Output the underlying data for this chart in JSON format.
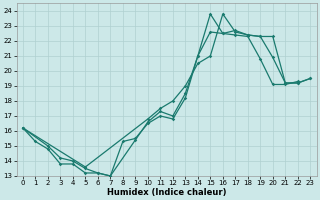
{
  "xlabel": "Humidex (Indice chaleur)",
  "bg_color": "#cce8e8",
  "grid_color": "#b0d0d0",
  "line_color": "#1a7a6e",
  "xlim": [
    -0.5,
    23.5
  ],
  "ylim": [
    13,
    24.5
  ],
  "xticks": [
    0,
    1,
    2,
    3,
    4,
    5,
    6,
    7,
    8,
    9,
    10,
    11,
    12,
    13,
    14,
    15,
    16,
    17,
    18,
    19,
    20,
    21,
    22,
    23
  ],
  "yticks": [
    13,
    14,
    15,
    16,
    17,
    18,
    19,
    20,
    21,
    22,
    23,
    24
  ],
  "line1_x": [
    0,
    1,
    2,
    3,
    4,
    5,
    6,
    7,
    8,
    9,
    10,
    11,
    12,
    13,
    14,
    15,
    16,
    17,
    18,
    19,
    20,
    21,
    22
  ],
  "line1_y": [
    16.2,
    15.3,
    14.8,
    13.8,
    13.8,
    13.2,
    13.2,
    13.0,
    15.3,
    15.5,
    16.5,
    17.0,
    16.8,
    18.2,
    21.0,
    22.6,
    22.5,
    22.4,
    22.3,
    20.8,
    19.1,
    19.1,
    19.3
  ],
  "line2_x": [
    0,
    2,
    3,
    4,
    5,
    6,
    7,
    9,
    10,
    11,
    12,
    13,
    14,
    15,
    16,
    17,
    18,
    19,
    20,
    21,
    22,
    23
  ],
  "line2_y": [
    16.2,
    15.0,
    14.2,
    14.0,
    13.5,
    13.2,
    13.0,
    15.4,
    16.6,
    17.3,
    17.0,
    18.5,
    21.0,
    23.8,
    22.5,
    22.7,
    22.4,
    22.3,
    22.3,
    19.2,
    19.2,
    19.5
  ],
  "line3_x": [
    0,
    5,
    10,
    11,
    12,
    13,
    14,
    15,
    16,
    17,
    18,
    19,
    20,
    21,
    22,
    23
  ],
  "line3_y": [
    16.2,
    13.6,
    16.8,
    17.5,
    18.0,
    19.0,
    20.5,
    21.0,
    23.8,
    22.6,
    22.4,
    22.3,
    20.9,
    19.2,
    19.2,
    19.5
  ]
}
